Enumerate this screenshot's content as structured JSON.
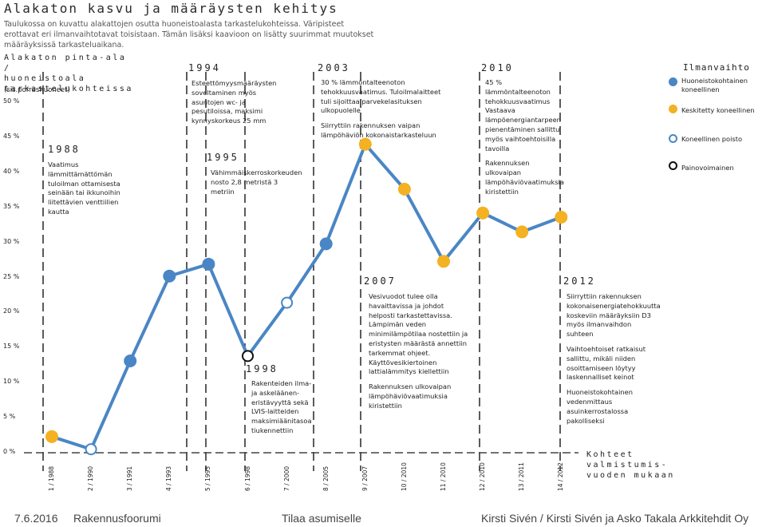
{
  "header": {
    "title": "Alakaton kasvu ja määräysten kehitys",
    "subtitle": "Taulukossa on kuvattu alakattojen osutta huoneistoalasta tarkastelukohteissa. Väripisteet erottavat eri ilmanvaihtotavat toisistaan. Tämän lisäksi kaavioon on lisätty suurimmat muutokset määräyksissä tarkasteluaikana."
  },
  "axis_text": {
    "ylabel": "Alakaton pinta-ala /\nhuoneistoala\ntarkastelukohteissa",
    "ylabel_sub": "(sis.porrashuoneet)",
    "xlabel": "Kohteet\nvalmistumis-\nvuoden mukaan"
  },
  "colors": {
    "line": "#4a86c5",
    "blue_fill": "#4a86c5",
    "orange_fill": "#f4b122",
    "hollow_blue_stroke": "#4a86c5",
    "hollow_black_stroke": "#111111"
  },
  "legend": {
    "title": "Ilmanvaihto",
    "items": [
      {
        "label": "Huoneistokohtainen koneellinen",
        "marker": "blue"
      },
      {
        "label": "Keskitetty koneellinen",
        "marker": "orange"
      },
      {
        "label": "Koneellinen poisto",
        "marker": "hollow_blue"
      },
      {
        "label": "Painovoimainen",
        "marker": "hollow_black"
      }
    ]
  },
  "regulations": [
    {
      "year": "1988",
      "year_label": "1988",
      "text": [
        "Vaatimus lämmittämättömän tuloilman ottamisesta seinään tai ikkunoihin liitettävien venttiilien kautta"
      ]
    },
    {
      "year": "1994",
      "year_label": "1994",
      "text": [
        "Esteettömyysmääräysten soveltaminen myös asuntojen wc- ja pesutiloissa, maksimi kynnyskorkeus 25 mm"
      ]
    },
    {
      "year": "1995",
      "year_label": "1995",
      "text": [
        "Vähimmäiskerroskorkeuden nosto 2,8 metristä 3 metriin"
      ]
    },
    {
      "year": "1998",
      "year_label": "1998",
      "text": [
        "Rakenteiden ilma- ja askeläänen-eristävyyttä sekä LVIS-laitteiden maksimiäänitasoa tiukennettiin"
      ]
    },
    {
      "year": "2003",
      "year_label": "2003",
      "text": [
        "30 % lämmöntalteenoton tehokkuusvaatimus. Tuloilmalaitteet tuli sijoittaa parvekelasituksen ulkopuolelle",
        "Siirryttiin rakennuksen vaipan lämpöhäviön kokonaistarkasteluun"
      ]
    },
    {
      "year": "2007",
      "year_label": "2007",
      "text": [
        "Vesivuodot tulee olla havaittavissa ja johdot helposti tarkastettavissa. Lämpimän veden minimilämpötilaa nostettiin ja eristysten määrästä annettiin tarkemmat ohjeet. Käyttövesikiertoinen lattialämmitys kiellettiin",
        "Rakennuksen ulkovaipan lämpöhäviövaatimuksia kiristettiin"
      ]
    },
    {
      "year": "2010",
      "year_label": "2010",
      "text": [
        "45 % lämmöntalteenoton tehokkuusvaatimus Vastaava lämpöenergiantarpeen pienentäminen sallittu myös vaihtoehtoisilla tavoilla",
        "Rakennuksen ulkovaipan lämpöhäviövaatimuksia kiristettiin"
      ]
    },
    {
      "year": "2012",
      "year_label": "2012",
      "text": [
        "Siirryttiin rakennuksen kokonaisenergiatehokkuutta koskeviin määräyksiin D3 myös ilmanvaihdon suhteen",
        "Vaihtoehtoiset ratkaisut sallittu, mikäli niiden osoittamiseen löytyy laskennalliset keinot",
        "Huoneistokohtainen vedenmittaus asuinkerrostalossa pakolliseksi"
      ]
    }
  ],
  "footer": {
    "date": "7.6.2016",
    "event": "Rakennusfoorumi",
    "topic": "Tilaa asumiselle",
    "authors": "Kirsti Sivén / Kirsti Sivén ja Asko Takala Arkkitehdit Oy"
  },
  "chart_data": {
    "type": "line",
    "categories": [
      "1 / 1988",
      "2 / 1990",
      "3 / 1991",
      "4 / 1993",
      "5 / 1995",
      "6 / 1998",
      "7 / 2000",
      "8 / 2005",
      "9 / 2007",
      "10 / 2010",
      "11 / 2010",
      "12 / 2010",
      "13 / 2011",
      "14 / 2012"
    ],
    "values": [
      2.3,
      0.5,
      13.1,
      25.2,
      26.9,
      13.8,
      21.4,
      29.8,
      44.0,
      37.6,
      27.3,
      34.2,
      31.5,
      33.6
    ],
    "markers": [
      "orange",
      "hollow_blue",
      "blue",
      "blue",
      "blue",
      "hollow_black",
      "hollow_blue",
      "blue",
      "orange",
      "orange",
      "orange",
      "orange",
      "orange",
      "orange"
    ],
    "yticks": [
      "0 %",
      "5 %",
      "10 %",
      "15 %",
      "20 %",
      "25 %",
      "30 %",
      "35 %",
      "40 %",
      "45 %",
      "50 %"
    ],
    "ylim": [
      0,
      50
    ],
    "regulation_years": [
      "1988",
      "1994",
      "1995",
      "1998",
      "2003",
      "2007",
      "2010",
      "2012"
    ]
  }
}
